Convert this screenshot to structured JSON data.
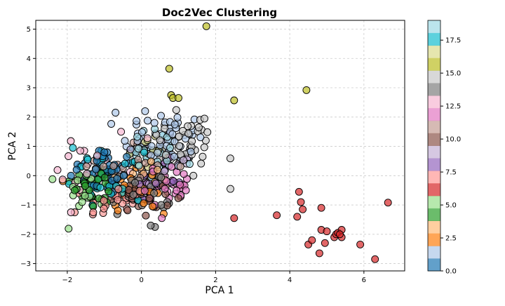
{
  "chart_data": {
    "type": "scatter",
    "title": "Doc2Vec Clustering",
    "xlabel": "PCA 1",
    "ylabel": "PCA 2",
    "xlim": [
      -2.85,
      7.1
    ],
    "ylim": [
      -3.25,
      5.3
    ],
    "xticks": [
      -2,
      0,
      2,
      4,
      6
    ],
    "yticks": [
      -3,
      -2,
      -1,
      0,
      1,
      2,
      3,
      4,
      5
    ],
    "grid": true,
    "colormap": "tab20",
    "colorbar": {
      "min": 0,
      "max": 19,
      "ticks": [
        0.0,
        2.5,
        5.0,
        7.5,
        10.0,
        12.5,
        15.0,
        17.5
      ]
    },
    "palette": [
      "#1f77b4",
      "#aec7e8",
      "#ff7f0e",
      "#ffbb78",
      "#2ca02c",
      "#98df8a",
      "#d62728",
      "#ff9896",
      "#9467bd",
      "#c5b0d5",
      "#8c564b",
      "#c49c94",
      "#e377c2",
      "#f7b6d2",
      "#7f7f7f",
      "#c7c7c7",
      "#bcbd22",
      "#dbdb8d",
      "#17becf",
      "#9edae5"
    ],
    "clusters": [
      {
        "label": 0,
        "cx": -0.9,
        "cy": 0.2,
        "sx": 0.45,
        "sy": 0.45,
        "n": 40,
        "extra": [
          [
            -1.9,
            0.0
          ],
          [
            -1.75,
            0.2
          ],
          [
            -1.0,
            0.8
          ]
        ]
      },
      {
        "label": 1,
        "cx": 0.6,
        "cy": 1.2,
        "sx": 0.55,
        "sy": 0.5,
        "n": 55,
        "extra": [
          [
            -0.7,
            2.15
          ],
          [
            0.1,
            2.2
          ],
          [
            0.35,
            1.8
          ],
          [
            0.9,
            1.75
          ]
        ]
      },
      {
        "label": 2,
        "cx": -0.1,
        "cy": -0.4,
        "sx": 0.5,
        "sy": 0.45,
        "n": 22,
        "extra": [
          [
            0.3,
            -1.05
          ],
          [
            0.6,
            -1.3
          ]
        ]
      },
      {
        "label": 3,
        "cx": 0.0,
        "cy": 0.0,
        "sx": 0.5,
        "sy": 0.45,
        "n": 18,
        "extra": []
      },
      {
        "label": 4,
        "cx": -1.2,
        "cy": -0.3,
        "sx": 0.35,
        "sy": 0.35,
        "n": 38,
        "extra": [
          [
            -1.8,
            -0.5
          ],
          [
            -1.3,
            -1.05
          ]
        ]
      },
      {
        "label": 5,
        "cx": -1.5,
        "cy": -0.55,
        "sx": 0.3,
        "sy": 0.3,
        "n": 12,
        "extra": [
          [
            -2.4,
            -0.12
          ],
          [
            -1.6,
            -0.9
          ]
        ]
      },
      {
        "label": 6,
        "cx": 5.2,
        "cy": -1.9,
        "sx": 0.45,
        "sy": 0.3,
        "n": 0,
        "extra": [
          [
            2.5,
            -1.45
          ],
          [
            3.65,
            -1.35
          ],
          [
            4.2,
            -1.4
          ],
          [
            4.25,
            -0.55
          ],
          [
            4.3,
            -0.9
          ],
          [
            4.35,
            -1.15
          ],
          [
            4.5,
            -2.35
          ],
          [
            4.6,
            -2.2
          ],
          [
            4.8,
            -2.65
          ],
          [
            4.85,
            -1.1
          ],
          [
            4.85,
            -1.85
          ],
          [
            4.95,
            -2.3
          ],
          [
            5.0,
            -1.9
          ],
          [
            5.2,
            -2.1
          ],
          [
            5.25,
            -2.0
          ],
          [
            5.3,
            -1.95
          ],
          [
            5.4,
            -1.85
          ],
          [
            5.4,
            -2.1
          ],
          [
            5.35,
            -2.0
          ],
          [
            5.9,
            -2.35
          ],
          [
            6.3,
            -2.85
          ],
          [
            6.65,
            -0.92
          ]
        ]
      },
      {
        "label": 7,
        "cx": -0.7,
        "cy": -0.9,
        "sx": 0.4,
        "sy": 0.3,
        "n": 28,
        "extra": [
          [
            -1.8,
            -1.25
          ],
          [
            -1.3,
            -1.25
          ]
        ]
      },
      {
        "label": 8,
        "cx": 0.5,
        "cy": -0.1,
        "sx": 0.3,
        "sy": 0.3,
        "n": 14,
        "extra": []
      },
      {
        "label": 9,
        "cx": 0.5,
        "cy": 0.5,
        "sx": 0.45,
        "sy": 0.4,
        "n": 18,
        "extra": []
      },
      {
        "label": 10,
        "cx": -0.2,
        "cy": -0.7,
        "sx": 0.5,
        "sy": 0.35,
        "n": 30,
        "extra": []
      },
      {
        "label": 11,
        "cx": -0.1,
        "cy": 0.3,
        "sx": 0.55,
        "sy": 0.45,
        "n": 24,
        "extra": []
      },
      {
        "label": 12,
        "cx": 0.7,
        "cy": -0.3,
        "sx": 0.45,
        "sy": 0.3,
        "n": 30,
        "extra": [
          [
            1.2,
            -0.5
          ],
          [
            0.55,
            -1.45
          ]
        ]
      },
      {
        "label": 13,
        "cx": -1.0,
        "cy": 0.4,
        "sx": 0.6,
        "sy": 0.45,
        "n": 20,
        "extra": [
          [
            -1.65,
            0.85
          ],
          [
            -1.9,
            -1.25
          ],
          [
            -0.55,
            1.5
          ]
        ]
      },
      {
        "label": 14,
        "cx": 0.0,
        "cy": -0.6,
        "sx": 0.4,
        "sy": 0.4,
        "n": 34,
        "extra": [
          [
            0.25,
            -1.7
          ]
        ]
      },
      {
        "label": 15,
        "cx": 1.0,
        "cy": 1.1,
        "sx": 0.5,
        "sy": 0.45,
        "n": 44,
        "extra": [
          [
            1.7,
            1.95
          ],
          [
            1.65,
            0.65
          ],
          [
            1.4,
            0.0
          ],
          [
            2.4,
            -0.45
          ]
        ]
      },
      {
        "label": 16,
        "cx": 0.8,
        "cy": 2.7,
        "sx": 0.1,
        "sy": 0.1,
        "n": 0,
        "extra": [
          [
            0.8,
            2.75
          ],
          [
            0.85,
            2.65
          ],
          [
            1.0,
            2.65
          ],
          [
            0.75,
            3.65
          ],
          [
            1.75,
            5.1
          ],
          [
            2.5,
            2.57
          ],
          [
            4.45,
            2.92
          ]
        ]
      },
      {
        "label": 17,
        "cx": 0.3,
        "cy": 0.8,
        "sx": 0.3,
        "sy": 0.3,
        "n": 10,
        "extra": []
      },
      {
        "label": 18,
        "cx": -0.9,
        "cy": 0.0,
        "sx": 0.45,
        "sy": 0.4,
        "n": 34,
        "extra": [
          [
            -1.85,
            0.95
          ],
          [
            -1.45,
            0.55
          ]
        ]
      },
      {
        "label": 19,
        "cx": 0.4,
        "cy": 0.7,
        "sx": 0.5,
        "sy": 0.45,
        "n": 26,
        "extra": [
          [
            1.3,
            0.4
          ]
        ]
      }
    ]
  }
}
